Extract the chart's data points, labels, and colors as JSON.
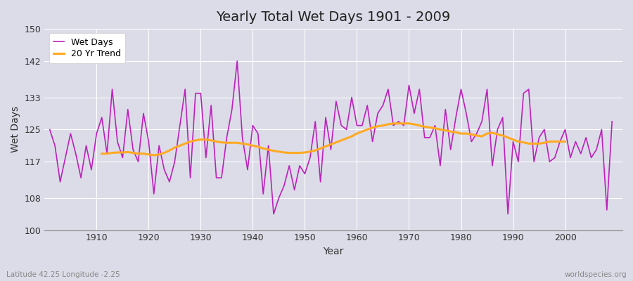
{
  "title": "Yearly Total Wet Days 1901 - 2009",
  "xlabel": "Year",
  "ylabel": "Wet Days",
  "footnote_left": "Latitude 42.25 Longitude -2.25",
  "footnote_right": "worldspecies.org",
  "ylim": [
    100,
    150
  ],
  "yticks": [
    100,
    108,
    117,
    125,
    133,
    142,
    150
  ],
  "bg_color": "#dcdce8",
  "plot_bg_color": "#dcdce8",
  "wet_days_color": "#bb22bb",
  "trend_color": "#ffaa22",
  "legend_labels": [
    "Wet Days",
    "20 Yr Trend"
  ],
  "years": [
    1901,
    1902,
    1903,
    1904,
    1905,
    1906,
    1907,
    1908,
    1909,
    1910,
    1911,
    1912,
    1913,
    1914,
    1915,
    1916,
    1917,
    1918,
    1919,
    1920,
    1921,
    1922,
    1923,
    1924,
    1925,
    1926,
    1927,
    1928,
    1929,
    1930,
    1931,
    1932,
    1933,
    1934,
    1935,
    1936,
    1937,
    1938,
    1939,
    1940,
    1941,
    1942,
    1943,
    1944,
    1945,
    1946,
    1947,
    1948,
    1949,
    1950,
    1951,
    1952,
    1953,
    1954,
    1955,
    1956,
    1957,
    1958,
    1959,
    1960,
    1961,
    1962,
    1963,
    1964,
    1965,
    1966,
    1967,
    1968,
    1969,
    1970,
    1971,
    1972,
    1973,
    1974,
    1975,
    1976,
    1977,
    1978,
    1979,
    1980,
    1981,
    1982,
    1983,
    1984,
    1985,
    1986,
    1987,
    1988,
    1989,
    1990,
    1991,
    1992,
    1993,
    1994,
    1995,
    1996,
    1997,
    1998,
    1999,
    2000,
    2001,
    2002,
    2003,
    2004,
    2005,
    2006,
    2007,
    2008,
    2009
  ],
  "wet_days": [
    125,
    121,
    112,
    118,
    124,
    119,
    113,
    121,
    115,
    124,
    128,
    119,
    135,
    122,
    118,
    130,
    120,
    117,
    129,
    122,
    109,
    121,
    115,
    112,
    117,
    126,
    135,
    113,
    134,
    134,
    118,
    131,
    113,
    113,
    123,
    130,
    142,
    123,
    115,
    126,
    124,
    109,
    121,
    104,
    108,
    111,
    116,
    110,
    116,
    114,
    118,
    127,
    112,
    128,
    120,
    132,
    126,
    125,
    133,
    126,
    126,
    131,
    122,
    129,
    131,
    135,
    126,
    127,
    126,
    136,
    129,
    135,
    123,
    123,
    126,
    116,
    130,
    120,
    128,
    135,
    129,
    122,
    124,
    127,
    135,
    116,
    125,
    128,
    104,
    122,
    117,
    134,
    135,
    117,
    123,
    125,
    117,
    118,
    122,
    125,
    118,
    122,
    119,
    123,
    118,
    120,
    125,
    105,
    127
  ],
  "trend": [
    null,
    null,
    null,
    null,
    null,
    null,
    null,
    null,
    null,
    null,
    119.0,
    119.0,
    119.2,
    119.3,
    119.3,
    119.4,
    119.2,
    119.0,
    119.0,
    118.8,
    118.6,
    118.8,
    119.2,
    119.8,
    120.5,
    121.0,
    121.5,
    122.0,
    122.3,
    122.5,
    122.5,
    122.3,
    122.0,
    121.8,
    121.7,
    121.7,
    121.7,
    121.5,
    121.3,
    121.0,
    120.7,
    120.3,
    120.0,
    119.7,
    119.5,
    119.3,
    119.2,
    119.2,
    119.2,
    119.3,
    119.5,
    119.8,
    120.3,
    120.8,
    121.3,
    121.8,
    122.3,
    122.8,
    123.3,
    124.0,
    124.5,
    125.0,
    125.5,
    125.8,
    126.0,
    126.3,
    126.5,
    126.5,
    126.5,
    126.5,
    126.3,
    126.0,
    125.7,
    125.5,
    125.3,
    125.0,
    124.8,
    124.5,
    124.3,
    124.0,
    124.0,
    123.8,
    123.5,
    123.3,
    124.0,
    124.2,
    123.8,
    123.5,
    123.0,
    122.5,
    122.0,
    121.8,
    121.5,
    121.5,
    121.5,
    121.7,
    122.0,
    122.0,
    122.0,
    122.0,
    null,
    null,
    null,
    null,
    null,
    null,
    null,
    null,
    null
  ]
}
